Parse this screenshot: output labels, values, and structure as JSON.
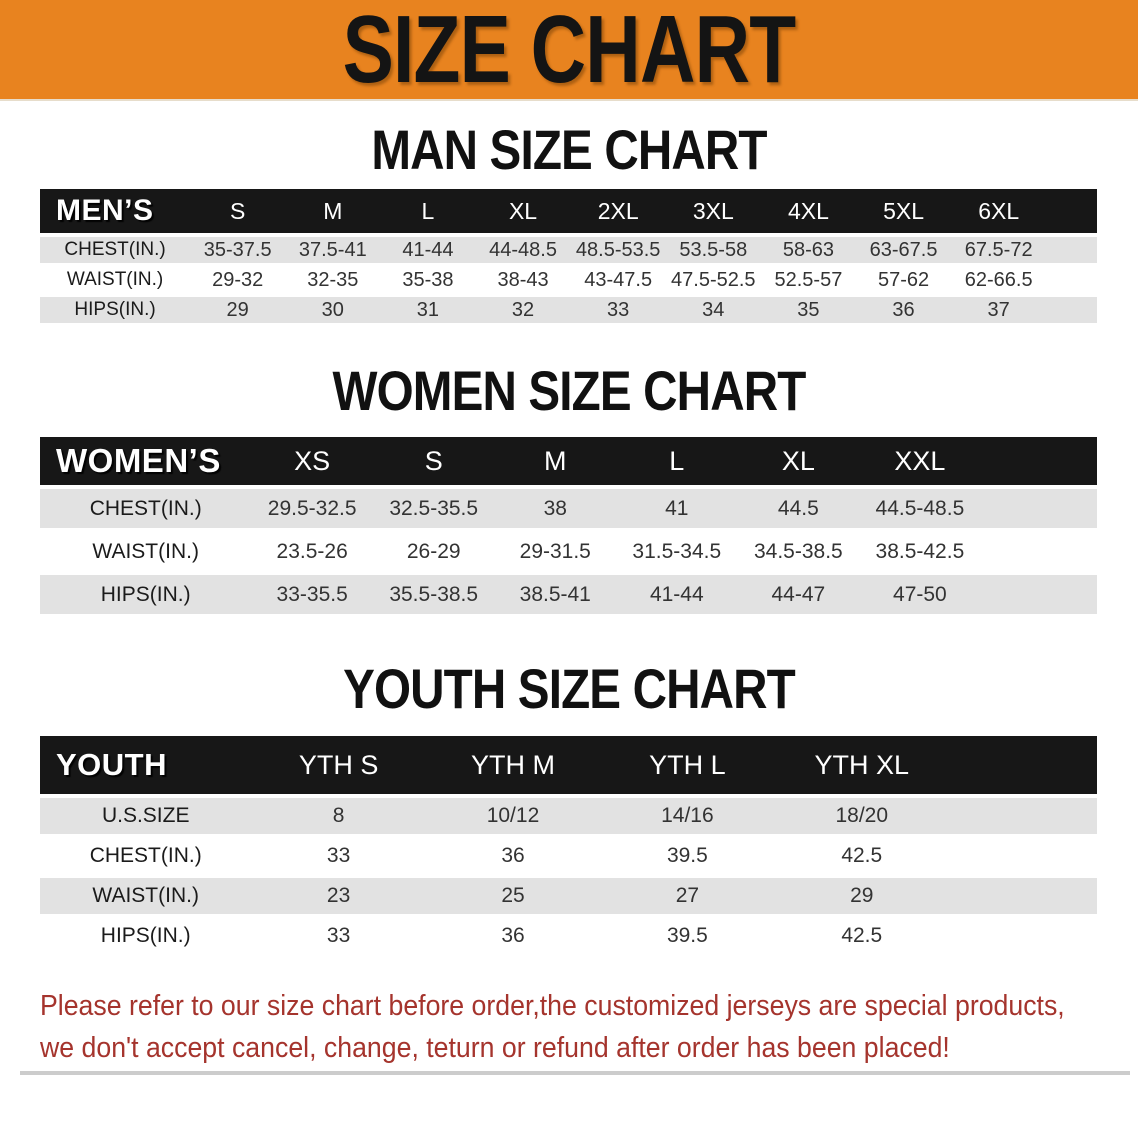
{
  "banner": {
    "title": "SIZE CHART"
  },
  "sections": [
    {
      "id": "men",
      "title": "MAN SIZE CHART",
      "header_label": "MEN’S",
      "columns": [
        "S",
        "M",
        "L",
        "XL",
        "2XL",
        "3XL",
        "4XL",
        "5XL",
        "6XL"
      ],
      "rows": [
        {
          "label": "CHEST(IN.)",
          "values": [
            "35-37.5",
            "37.5-41",
            "41-44",
            "44-48.5",
            "48.5-53.5",
            "53.5-58",
            "58-63",
            "63-67.5",
            "67.5-72"
          ]
        },
        {
          "label": "WAIST(IN.)",
          "values": [
            "29-32",
            "32-35",
            "35-38",
            "38-43",
            "43-47.5",
            "47.5-52.5",
            "52.5-57",
            "57-62",
            "62-66.5"
          ]
        },
        {
          "label": "HIPS(IN.)",
          "values": [
            "29",
            "30",
            "31",
            "32",
            "33",
            "34",
            "35",
            "36",
            "37"
          ]
        }
      ]
    },
    {
      "id": "women",
      "title": "WOMEN SIZE CHART",
      "header_label": "WOMEN’S",
      "columns": [
        "XS",
        "S",
        "M",
        "L",
        "XL",
        "XXL"
      ],
      "rows": [
        {
          "label": "CHEST(IN.)",
          "values": [
            "29.5-32.5",
            "32.5-35.5",
            "38",
            "41",
            "44.5",
            "44.5-48.5"
          ]
        },
        {
          "label": "WAIST(IN.)",
          "values": [
            "23.5-26",
            "26-29",
            "29-31.5",
            "31.5-34.5",
            "34.5-38.5",
            "38.5-42.5"
          ]
        },
        {
          "label": "HIPS(IN.)",
          "values": [
            "33-35.5",
            "35.5-38.5",
            "38.5-41",
            "41-44",
            "44-47",
            "47-50"
          ]
        }
      ]
    },
    {
      "id": "youth",
      "title": "YOUTH SIZE CHART",
      "header_label": "YOUTH",
      "columns": [
        "YTH S",
        "YTH M",
        "YTH L",
        "YTH XL"
      ],
      "rows": [
        {
          "label": "U.S.SIZE",
          "values": [
            "8",
            "10/12",
            "14/16",
            "18/20"
          ]
        },
        {
          "label": "CHEST(IN.)",
          "values": [
            "33",
            "36",
            "39.5",
            "42.5"
          ]
        },
        {
          "label": "WAIST(IN.)",
          "values": [
            "23",
            "25",
            "27",
            "29"
          ]
        },
        {
          "label": "HIPS(IN.)",
          "values": [
            "33",
            "36",
            "39.5",
            "42.5"
          ]
        }
      ]
    }
  ],
  "footer": {
    "line1": "Please refer to our size chart before order,the customized jerseys are special products,",
    "line2": "we don't accept cancel, change, teturn or refund after order has been placed!"
  },
  "colors": {
    "banner_orange": "#E8831F",
    "table_header_black": "#171717",
    "row_stripe_gray": "#E2E2E2",
    "disclaimer_red": "#A5342D"
  }
}
